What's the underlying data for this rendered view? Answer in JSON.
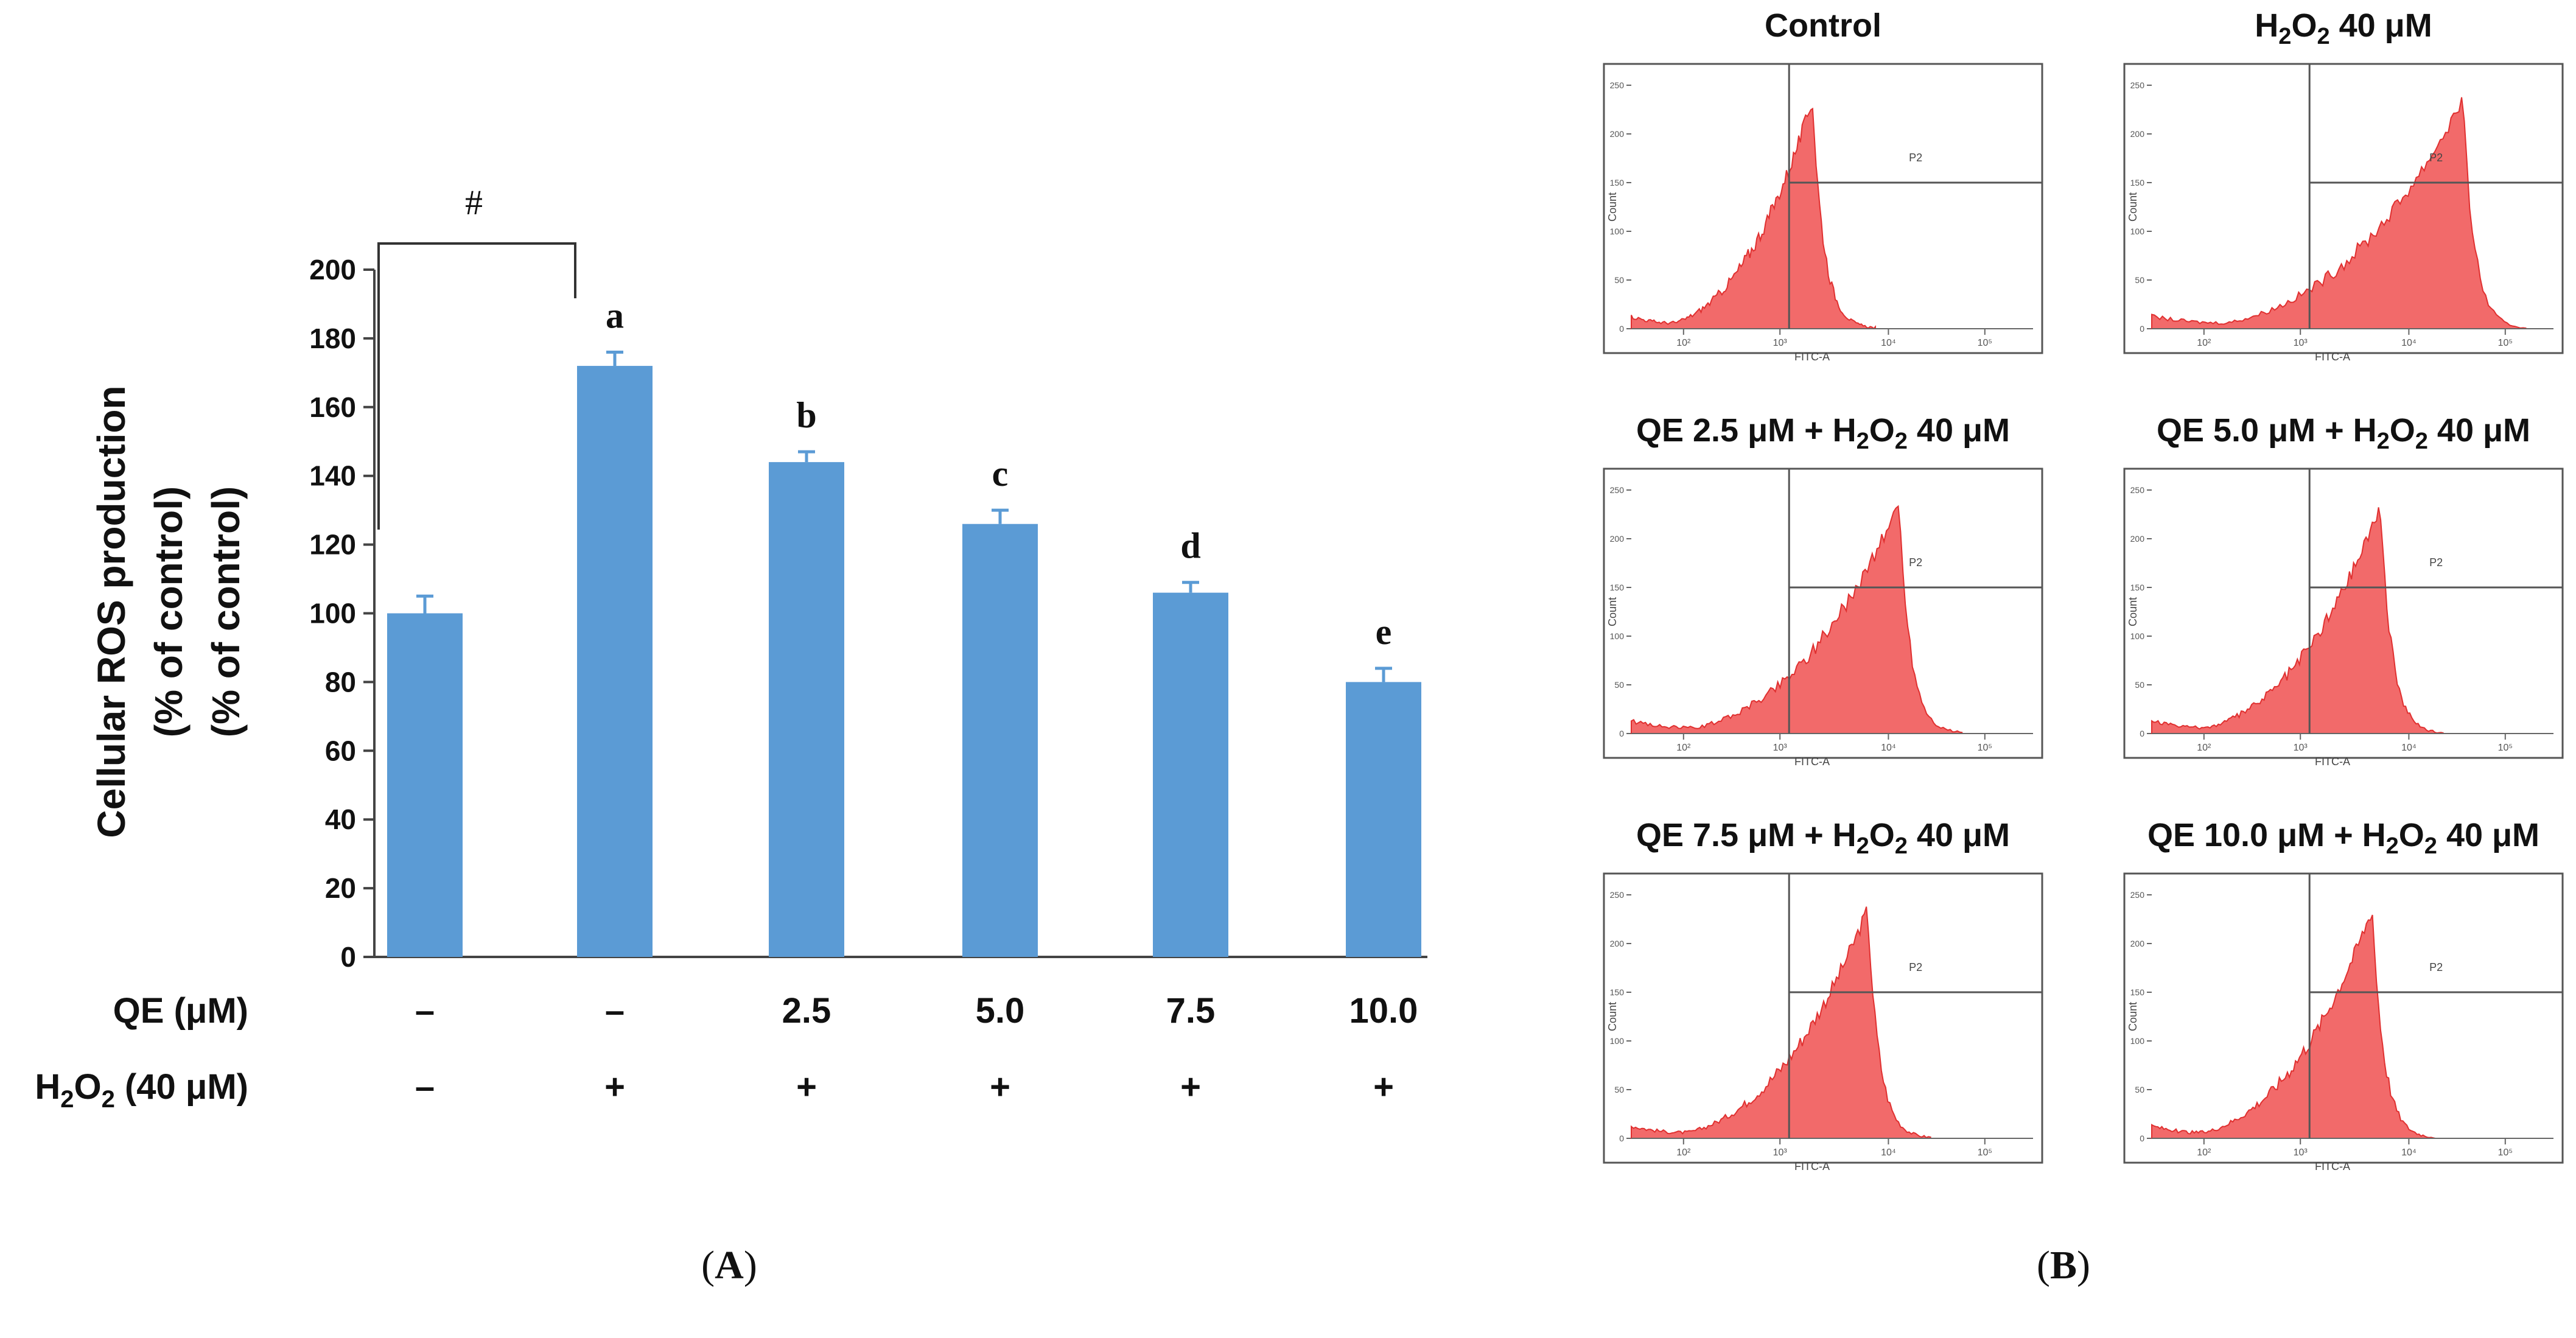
{
  "chart_data": [
    {
      "panel": "A",
      "type": "bar",
      "ylabel_lines": [
        "Cellular ROS production",
        "(% of control)",
        "(% of control)"
      ],
      "ylim": [
        0,
        200
      ],
      "yticks": [
        0,
        20,
        40,
        60,
        80,
        100,
        120,
        140,
        160,
        180,
        200
      ],
      "values": [
        100,
        172,
        144,
        126,
        106,
        80
      ],
      "errors": [
        5,
        4,
        3,
        4,
        3,
        4
      ],
      "significance_letters": [
        "",
        "a",
        "b",
        "c",
        "d",
        "e"
      ],
      "bracket_label": "#",
      "bar_color": "#5b9bd5",
      "treatment_rows": [
        {
          "label": "QE (μM)",
          "values": [
            "–",
            "–",
            "2.5",
            "5.0",
            "7.5",
            "10.0"
          ]
        },
        {
          "label_main": "H",
          "label_sub": "2",
          "label_rest": "O",
          "label_sub2": "2",
          "label_tail": " (40 μM)",
          "values": [
            "–",
            "+",
            "+",
            "+",
            "+",
            "+"
          ]
        }
      ]
    },
    {
      "panel": "B",
      "type": "histogram",
      "fill_color": "#f26a6a",
      "line_color": "#e03030",
      "ylabel": "Count",
      "xlabel": "FITC-A",
      "gate_label": "P2",
      "x_ticks": [
        "10²",
        "10³",
        "10⁴",
        "10⁵"
      ],
      "y_ticks": [
        "0",
        "50",
        "100",
        "150",
        "200",
        "250"
      ],
      "plots": [
        {
          "title_parts": [
            "Control"
          ],
          "peak": 0.46
        },
        {
          "title_parts": [
            "H",
            "2",
            "O",
            "2",
            " 40 μM"
          ],
          "peak": 0.79
        },
        {
          "title_parts": [
            "QE 2.5 μM + H",
            "2",
            "O",
            "2",
            " 40 μM"
          ],
          "peak": 0.68
        },
        {
          "title_parts": [
            "QE 5.0 μM + H",
            "2",
            "O",
            "2",
            " 40 μM"
          ],
          "peak": 0.58
        },
        {
          "title_parts": [
            "QE 7.5 μM + H",
            "2",
            "O",
            "2",
            " 40 μM"
          ],
          "peak": 0.6
        },
        {
          "title_parts": [
            "QE 10.0 μM + H",
            "2",
            "O",
            "2",
            " 40 μM"
          ],
          "peak": 0.56
        }
      ]
    }
  ],
  "panel_labels": {
    "a": "A",
    "b": "B"
  }
}
